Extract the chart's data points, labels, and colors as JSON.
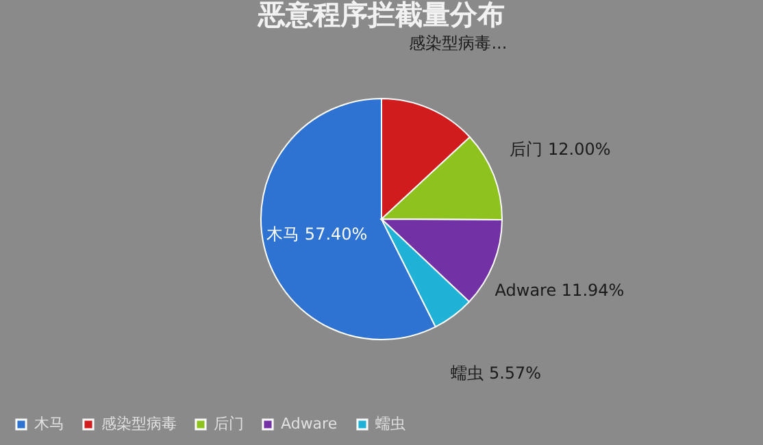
{
  "chart_data": {
    "type": "pie",
    "title": "恶意程序拦截量分布",
    "categories": [
      "木马",
      "感染型病毒",
      "后门",
      "Adware",
      "蠕虫"
    ],
    "values": [
      57.4,
      13.09,
      12.0,
      11.94,
      5.57
    ],
    "colors": [
      "#2e72d2",
      "#d01c1c",
      "#8dc21f",
      "#7232a6",
      "#1fb1d6"
    ],
    "value_labels": [
      "木马 57.40%",
      "感染型病毒...",
      "后门 12.00%",
      "Adware 11.94%",
      "蠕虫 5.57%"
    ],
    "legend": "bottom"
  }
}
